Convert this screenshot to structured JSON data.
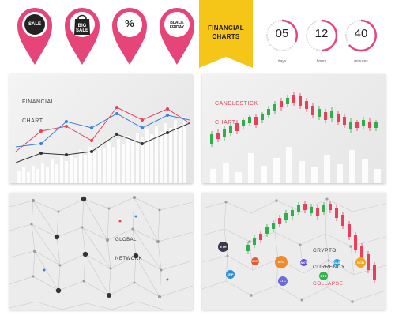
{
  "pins": [
    {
      "label": "SALE",
      "color": "#e6457a"
    },
    {
      "label": "BIG\nSALE",
      "color": "#e6457a"
    },
    {
      "label": "%",
      "color": "#e6457a"
    },
    {
      "label": "BLACK\nFRIDAY",
      "color": "#e6457a"
    }
  ],
  "banner": {
    "line1": "FINANCIAL",
    "line2": "CHARTS",
    "color": "#f5c518"
  },
  "timers": [
    {
      "value": "05",
      "unit": "days"
    },
    {
      "value": "12",
      "unit": "hours"
    },
    {
      "value": "40",
      "unit": "minutes"
    }
  ],
  "panels": {
    "financial": {
      "line1": "FINANCIAL",
      "line2": "CHART"
    },
    "candlestick": {
      "line1": "CANDLESTICK",
      "line2": "CHART"
    },
    "global": {
      "line1": "GLOBAL",
      "line2": "NETWORK"
    },
    "crypto": {
      "line1": "CRYPTO",
      "line2": "CURRENCY",
      "line3": "COLLAPSE"
    }
  },
  "coins": [
    {
      "label": "ETH",
      "color": "#3a3a4a"
    },
    {
      "label": "BTC",
      "color": "#f08a2c"
    },
    {
      "label": "XRP",
      "color": "#2a8fd8"
    },
    {
      "label": "LTC",
      "color": "#6a6ad8"
    },
    {
      "label": "XMR",
      "color": "#e45a2a"
    },
    {
      "label": "ETC",
      "color": "#2fb34a"
    },
    {
      "label": "BCH",
      "color": "#f2a520"
    },
    {
      "label": "NXT",
      "color": "#6a4ad8"
    },
    {
      "label": "DASH",
      "color": "#2aa0d8"
    }
  ],
  "colors": {
    "red": "#e8405a",
    "green": "#2fae4a",
    "blue": "#3a7fd8",
    "dark": "#333333",
    "panel_bg": "#eeeeee"
  }
}
